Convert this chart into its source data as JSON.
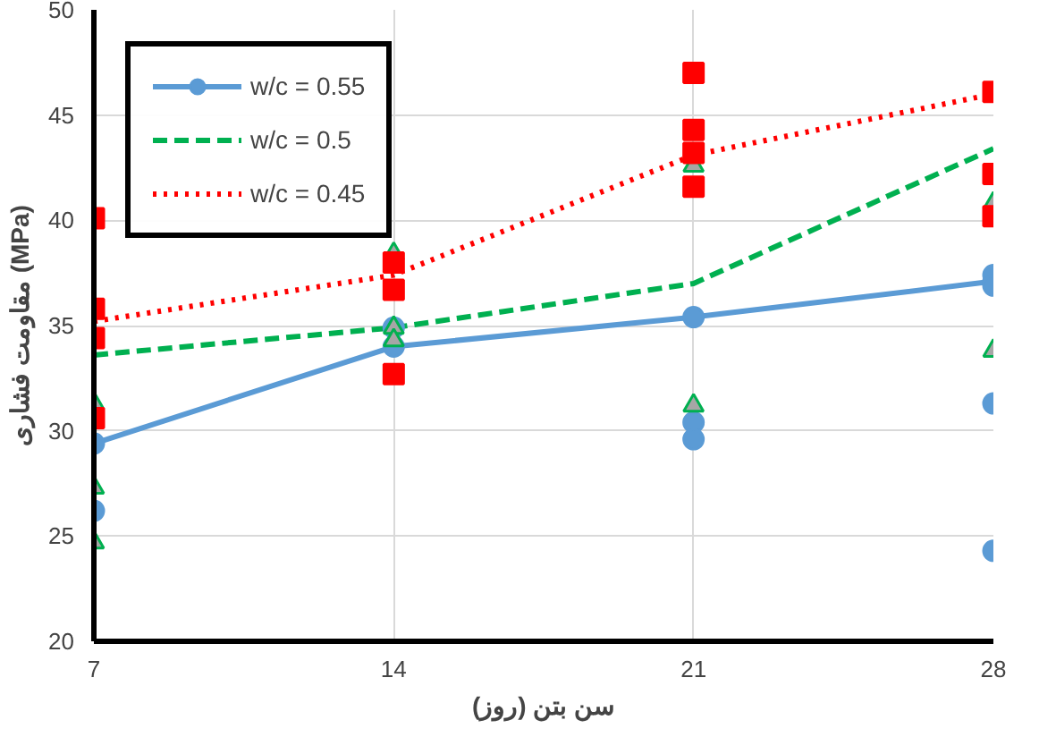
{
  "chart_data": {
    "type": "line",
    "xlabel": "سن بتن (روز)",
    "ylabel": "مقاومت فشاری (MPa)",
    "xlim": [
      7,
      28
    ],
    "ylim": [
      20,
      50
    ],
    "xticks": [
      7,
      14,
      21,
      28
    ],
    "yticks": [
      20,
      25,
      30,
      35,
      40,
      45,
      50
    ],
    "grid": true,
    "legend": "top left",
    "series": [
      {
        "name": "w/c = 0.55",
        "color": "#5b9bd5",
        "marker": "circle",
        "line_style": "solid",
        "x": [
          7,
          14,
          21,
          28
        ],
        "values": [
          29.4,
          34.0,
          35.4,
          37.1
        ]
      },
      {
        "name": "w/c = 0.5",
        "color": "#00b050",
        "marker": "none",
        "line_style": "dashed",
        "x": [
          7,
          14,
          21,
          28
        ],
        "values": [
          33.6,
          34.9,
          37.0,
          43.4
        ]
      },
      {
        "name": "w/c = 0.45",
        "color": "#ff0000",
        "marker": "none",
        "line_style": "dotted",
        "x": [
          7,
          14,
          21,
          28
        ],
        "values": [
          35.2,
          37.4,
          43.1,
          46.0
        ]
      },
      {
        "type": "scatter",
        "color": "#5b9bd5",
        "marker": "circle",
        "x": [
          7,
          14,
          21,
          21,
          28,
          28,
          28,
          28
        ],
        "values": [
          26.2,
          34.9,
          30.4,
          29.6,
          37.4,
          36.9,
          31.3,
          24.3
        ]
      },
      {
        "type": "scatter",
        "color": "#a6a6a6",
        "marker": "triangle",
        "x": [
          7,
          7,
          7,
          14,
          14,
          14,
          21,
          21,
          28,
          28
        ],
        "values": [
          31.3,
          27.3,
          24.7,
          38.4,
          34.9,
          34.3,
          42.6,
          31.2,
          40.8,
          33.8
        ]
      },
      {
        "type": "scatter",
        "color": "#ff0000",
        "marker": "square",
        "x": [
          7,
          7,
          7,
          7,
          14,
          14,
          14,
          21,
          21,
          21,
          21,
          28,
          28,
          28
        ],
        "values": [
          40.1,
          35.8,
          34.4,
          30.6,
          38.0,
          36.7,
          32.7,
          47.0,
          44.3,
          43.2,
          41.6,
          46.1,
          42.2,
          40.2
        ]
      }
    ]
  }
}
